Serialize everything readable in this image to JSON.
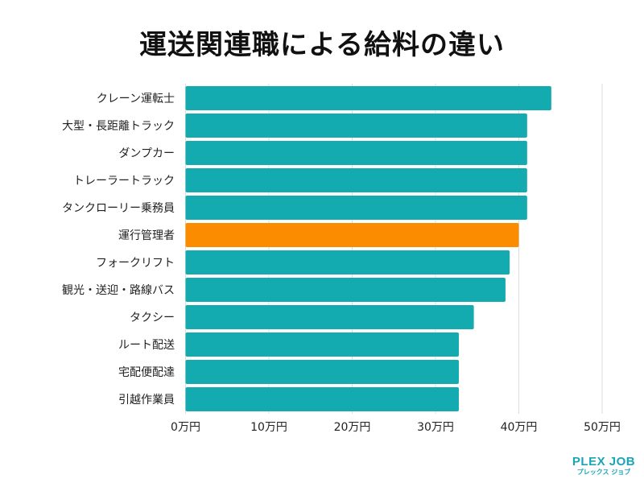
{
  "chart_data": {
    "type": "bar",
    "orientation": "horizontal",
    "title": "運送関連職による給料の違い",
    "xlabel": "",
    "ylabel": "",
    "xlim": [
      0,
      50
    ],
    "grid": true,
    "ticks": [
      "0万円",
      "10万円",
      "20万円",
      "30万円",
      "40万円",
      "50万円"
    ],
    "tick_values": [
      0,
      10,
      20,
      30,
      40,
      50
    ],
    "categories": [
      "クレーン運転士",
      "大型・長距離トラック",
      "ダンプカー",
      "トレーラートラック",
      "タンクローリー乗務員",
      "運行管理者",
      "フォークリフト",
      "観光・送迎・路線バス",
      "タクシー",
      "ルート配送",
      "宅配便配達",
      "引越作業員"
    ],
    "values": [
      43.9,
      41.0,
      41.0,
      41.0,
      41.0,
      40.0,
      38.9,
      38.4,
      34.6,
      32.8,
      32.8,
      32.8
    ],
    "highlight": "運行管理者",
    "colors": {
      "default": "#14abb0",
      "highlight": "#fb8c00",
      "grid": "#dddddd"
    }
  },
  "logo": {
    "main": "PLEX JOB",
    "sub": "プレックス ジョブ"
  }
}
